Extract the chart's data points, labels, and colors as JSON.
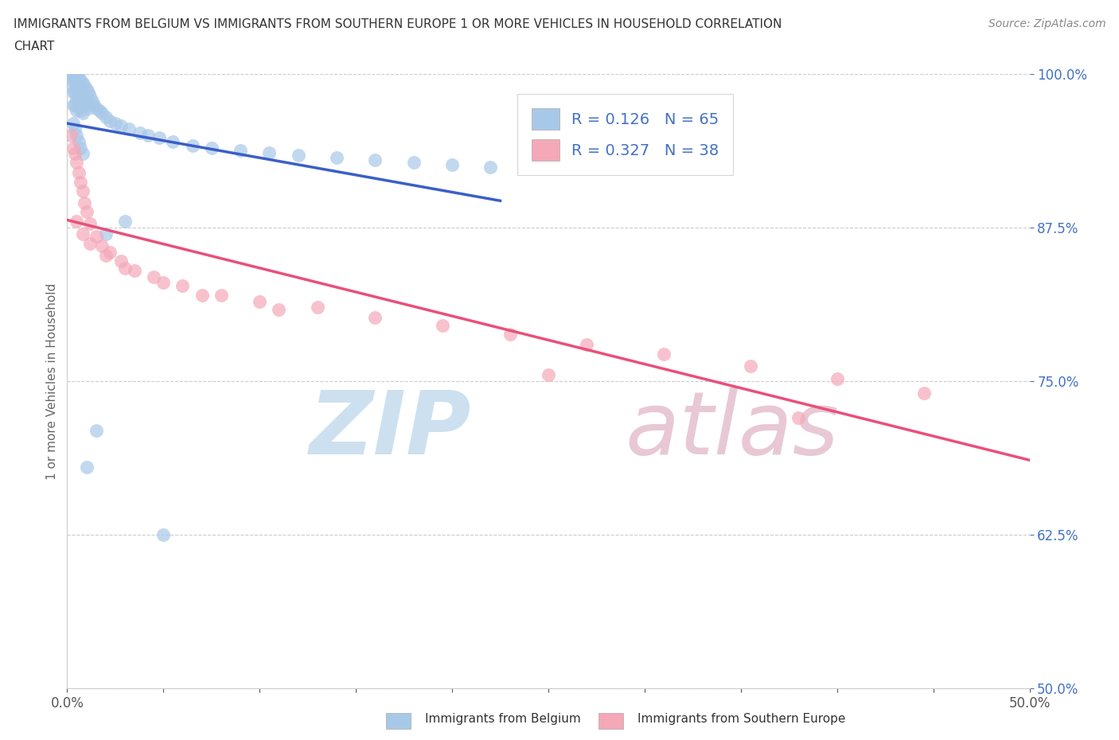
{
  "title_line1": "IMMIGRANTS FROM BELGIUM VS IMMIGRANTS FROM SOUTHERN EUROPE 1 OR MORE VEHICLES IN HOUSEHOLD CORRELATION",
  "title_line2": "CHART",
  "source": "Source: ZipAtlas.com",
  "ylabel": "1 or more Vehicles in Household",
  "xlim": [
    0.0,
    0.5
  ],
  "ylim": [
    0.5,
    1.0
  ],
  "xticks": [
    0.0,
    0.05,
    0.1,
    0.15,
    0.2,
    0.25,
    0.3,
    0.35,
    0.4,
    0.45,
    0.5
  ],
  "xticklabels_show": {
    "0.0": "0.0%",
    "0.50": "50.0%"
  },
  "yticks": [
    0.5,
    0.625,
    0.75,
    0.875,
    1.0
  ],
  "yticklabels": [
    "50.0%",
    "62.5%",
    "75.0%",
    "87.5%",
    "100.0%"
  ],
  "belgium_R": 0.126,
  "belgium_N": 65,
  "southern_R": 0.327,
  "southern_N": 38,
  "belgium_color": "#a8c8e8",
  "southern_color": "#f4a8b8",
  "belgium_line_color": "#3a5fc8",
  "southern_line_color": "#e8507a",
  "legend_text_color": "#4472c4",
  "watermark_zip_color": "#cce0f0",
  "watermark_atlas_color": "#e8c8d4",
  "background_color": "#ffffff",
  "grid_color": "#cccccc",
  "belgium_x": [
    0.002,
    0.002,
    0.003,
    0.003,
    0.003,
    0.003,
    0.004,
    0.004,
    0.004,
    0.004,
    0.005,
    0.005,
    0.005,
    0.005,
    0.006,
    0.006,
    0.006,
    0.007,
    0.007,
    0.007,
    0.008,
    0.008,
    0.008,
    0.009,
    0.009,
    0.01,
    0.01,
    0.011,
    0.011,
    0.012,
    0.013,
    0.014,
    0.015,
    0.017,
    0.018,
    0.02,
    0.022,
    0.025,
    0.028,
    0.032,
    0.038,
    0.042,
    0.048,
    0.055,
    0.065,
    0.075,
    0.09,
    0.105,
    0.12,
    0.14,
    0.16,
    0.18,
    0.2,
    0.22,
    0.003,
    0.004,
    0.005,
    0.006,
    0.007,
    0.008,
    0.01,
    0.015,
    0.02,
    0.03,
    0.05
  ],
  "belgium_y": [
    1.0,
    0.99,
    1.0,
    0.995,
    0.985,
    0.975,
    1.0,
    0.995,
    0.985,
    0.975,
    1.0,
    0.99,
    0.98,
    0.97,
    0.998,
    0.988,
    0.975,
    0.995,
    0.985,
    0.97,
    0.993,
    0.983,
    0.968,
    0.99,
    0.978,
    0.988,
    0.975,
    0.985,
    0.972,
    0.982,
    0.978,
    0.975,
    0.972,
    0.97,
    0.968,
    0.965,
    0.962,
    0.96,
    0.958,
    0.955,
    0.952,
    0.95,
    0.948,
    0.945,
    0.942,
    0.94,
    0.938,
    0.936,
    0.934,
    0.932,
    0.93,
    0.928,
    0.926,
    0.924,
    0.96,
    0.955,
    0.95,
    0.945,
    0.94,
    0.935,
    0.68,
    0.71,
    0.87,
    0.88,
    0.625
  ],
  "southern_x": [
    0.002,
    0.003,
    0.004,
    0.005,
    0.006,
    0.007,
    0.008,
    0.009,
    0.01,
    0.012,
    0.015,
    0.018,
    0.022,
    0.028,
    0.035,
    0.045,
    0.06,
    0.08,
    0.1,
    0.13,
    0.16,
    0.195,
    0.23,
    0.27,
    0.31,
    0.355,
    0.4,
    0.445,
    0.005,
    0.008,
    0.012,
    0.02,
    0.03,
    0.05,
    0.07,
    0.11,
    0.25,
    0.38
  ],
  "southern_y": [
    0.95,
    0.94,
    0.935,
    0.928,
    0.92,
    0.912,
    0.905,
    0.895,
    0.888,
    0.878,
    0.868,
    0.86,
    0.855,
    0.848,
    0.84,
    0.835,
    0.828,
    0.82,
    0.815,
    0.81,
    0.802,
    0.795,
    0.788,
    0.78,
    0.772,
    0.762,
    0.752,
    0.74,
    0.88,
    0.87,
    0.862,
    0.852,
    0.842,
    0.83,
    0.82,
    0.808,
    0.755,
    0.72
  ],
  "bel_trend_x": [
    0.0,
    0.225
  ],
  "sou_trend_x": [
    0.0,
    0.5
  ]
}
